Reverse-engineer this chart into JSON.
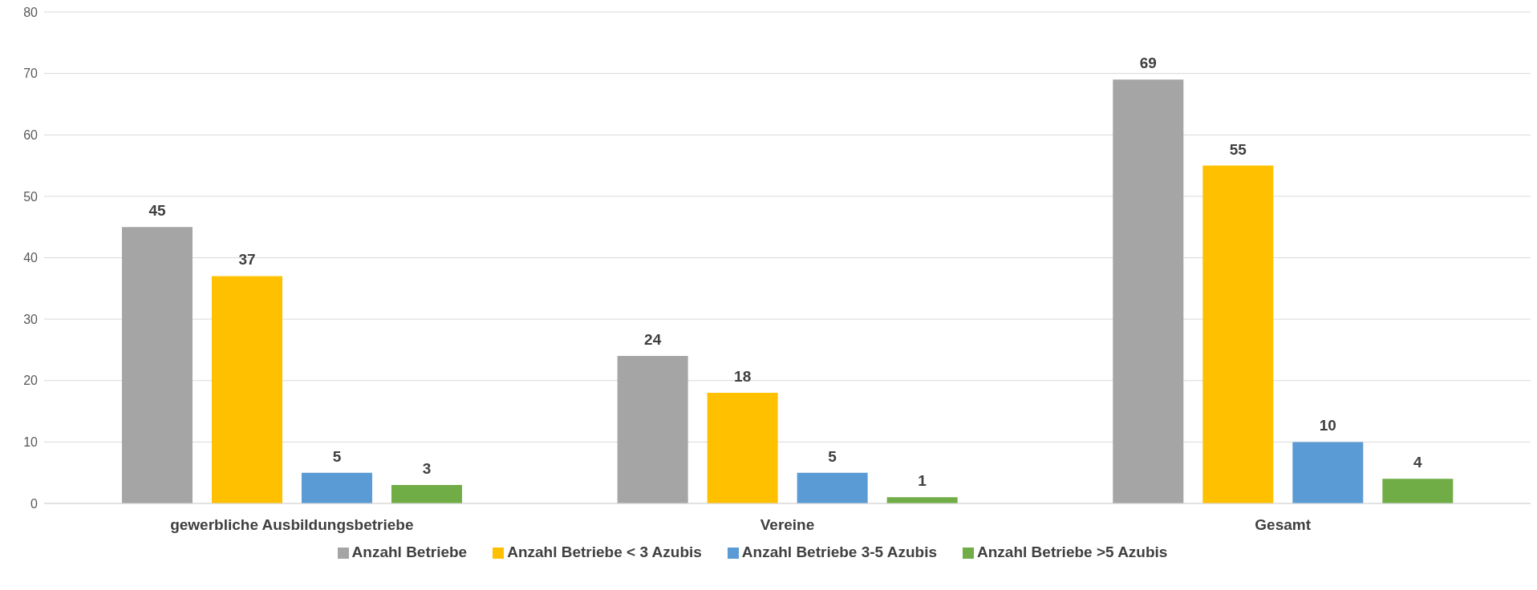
{
  "chart_data": {
    "type": "bar",
    "categories": [
      "gewerbliche Ausbildungsbetriebe",
      "Vereine",
      "Gesamt"
    ],
    "series": [
      {
        "name": "Anzahl Betriebe",
        "color": "#a5a5a5",
        "values": [
          45,
          24,
          69
        ]
      },
      {
        "name": "Anzahl Betriebe < 3 Azubis",
        "color": "#ffc000",
        "values": [
          37,
          18,
          55
        ]
      },
      {
        "name": "Anzahl Betriebe 3-5 Azubis",
        "color": "#5b9bd5",
        "values": [
          5,
          5,
          10
        ]
      },
      {
        "name": "Anzahl Betriebe >5 Azubis",
        "color": "#70ad47",
        "values": [
          3,
          1,
          4
        ]
      }
    ],
    "ylim": [
      0,
      80
    ],
    "yticks": [
      0,
      10,
      20,
      30,
      40,
      50,
      60,
      70,
      80
    ],
    "grid": "y",
    "legend": "bottom",
    "data_labels": true
  }
}
